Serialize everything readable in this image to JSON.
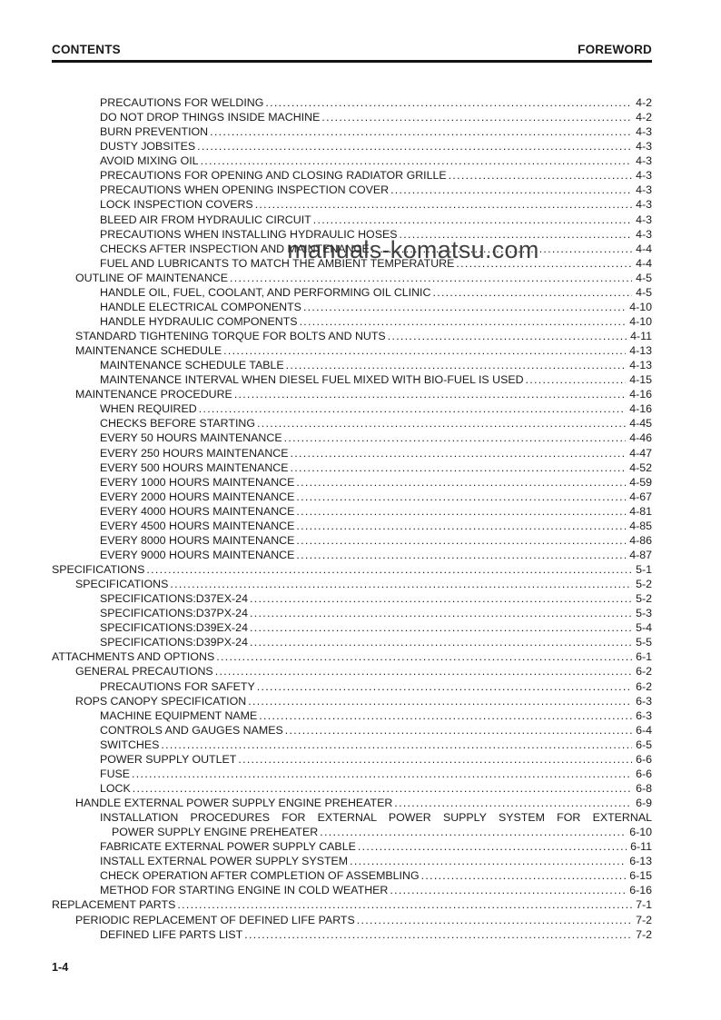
{
  "page": {
    "header": {
      "left": "CONTENTS",
      "right": "FOREWORD"
    },
    "watermark": "manuals-komatsu.com",
    "footer": {
      "page_number": "1-4"
    }
  },
  "toc": {
    "entries": [
      {
        "label": "PRECAUTIONS FOR WELDING",
        "page": "4-2",
        "level": 3
      },
      {
        "label": "DO NOT DROP THINGS INSIDE MACHINE",
        "page": "4-2",
        "level": 3
      },
      {
        "label": "BURN PREVENTION",
        "page": "4-3",
        "level": 3
      },
      {
        "label": "DUSTY JOBSITES",
        "page": "4-3",
        "level": 3
      },
      {
        "label": "AVOID MIXING OIL",
        "page": "4-3",
        "level": 3
      },
      {
        "label": "PRECAUTIONS FOR OPENING AND CLOSING RADIATOR GRILLE",
        "page": "4-3",
        "level": 3
      },
      {
        "label": "PRECAUTIONS WHEN OPENING INSPECTION COVER",
        "page": "4-3",
        "level": 3
      },
      {
        "label": "LOCK INSPECTION COVERS",
        "page": "4-3",
        "level": 3
      },
      {
        "label": "BLEED AIR FROM HYDRAULIC CIRCUIT",
        "page": "4-3",
        "level": 3
      },
      {
        "label": "PRECAUTIONS WHEN INSTALLING HYDRAULIC HOSES",
        "page": "4-3",
        "level": 3
      },
      {
        "label": "CHECKS AFTER INSPECTION AND MAINTENANCE",
        "page": "4-4",
        "level": 3
      },
      {
        "label": "FUEL AND LUBRICANTS TO MATCH THE AMBIENT TEMPERATURE",
        "page": "4-4",
        "level": 3
      },
      {
        "label": "OUTLINE OF MAINTENANCE",
        "page": "4-5",
        "level": 2
      },
      {
        "label": "HANDLE OIL, FUEL, COOLANT, AND PERFORMING OIL CLINIC",
        "page": "4-5",
        "level": 3
      },
      {
        "label": "HANDLE ELECTRICAL COMPONENTS",
        "page": "4-10",
        "level": 3
      },
      {
        "label": "HANDLE HYDRAULIC COMPONENTS",
        "page": "4-10",
        "level": 3
      },
      {
        "label": "STANDARD TIGHTENING TORQUE FOR BOLTS AND NUTS",
        "page": "4-11",
        "level": 2
      },
      {
        "label": "MAINTENANCE SCHEDULE",
        "page": "4-13",
        "level": 2
      },
      {
        "label": "MAINTENANCE SCHEDULE TABLE",
        "page": "4-13",
        "level": 3
      },
      {
        "label": "MAINTENANCE INTERVAL WHEN DIESEL FUEL MIXED WITH BIO-FUEL IS USED",
        "page": "4-15",
        "level": 3
      },
      {
        "label": "MAINTENANCE PROCEDURE",
        "page": "4-16",
        "level": 2
      },
      {
        "label": "WHEN REQUIRED",
        "page": "4-16",
        "level": 3
      },
      {
        "label": "CHECKS BEFORE STARTING",
        "page": "4-45",
        "level": 3
      },
      {
        "label": "EVERY 50 HOURS MAINTENANCE",
        "page": "4-46",
        "level": 3
      },
      {
        "label": "EVERY 250 HOURS MAINTENANCE",
        "page": "4-47",
        "level": 3
      },
      {
        "label": "EVERY 500 HOURS MAINTENANCE",
        "page": "4-52",
        "level": 3
      },
      {
        "label": "EVERY 1000 HOURS MAINTENANCE",
        "page": "4-59",
        "level": 3
      },
      {
        "label": "EVERY 2000 HOURS MAINTENANCE",
        "page": "4-67",
        "level": 3
      },
      {
        "label": "EVERY 4000 HOURS MAINTENANCE",
        "page": "4-81",
        "level": 3
      },
      {
        "label": "EVERY 4500 HOURS MAINTENANCE",
        "page": "4-85",
        "level": 3
      },
      {
        "label": "EVERY 8000 HOURS MAINTENANCE",
        "page": "4-86",
        "level": 3
      },
      {
        "label": "EVERY 9000 HOURS MAINTENANCE",
        "page": "4-87",
        "level": 3
      },
      {
        "label": "SPECIFICATIONS",
        "page": "5-1",
        "level": 1
      },
      {
        "label": "SPECIFICATIONS",
        "page": "5-2",
        "level": 2
      },
      {
        "label": "SPECIFICATIONS:D37EX-24",
        "page": "5-2",
        "level": 3
      },
      {
        "label": "SPECIFICATIONS:D37PX-24",
        "page": "5-3",
        "level": 3
      },
      {
        "label": "SPECIFICATIONS:D39EX-24",
        "page": "5-4",
        "level": 3
      },
      {
        "label": "SPECIFICATIONS:D39PX-24",
        "page": "5-5",
        "level": 3
      },
      {
        "label": "ATTACHMENTS AND OPTIONS",
        "page": "6-1",
        "level": 1
      },
      {
        "label": "GENERAL PRECAUTIONS",
        "page": "6-2",
        "level": 2
      },
      {
        "label": "PRECAUTIONS FOR SAFETY",
        "page": "6-2",
        "level": 3
      },
      {
        "label": "ROPS CANOPY SPECIFICATION",
        "page": "6-3",
        "level": 2
      },
      {
        "label": "MACHINE EQUIPMENT NAME",
        "page": "6-3",
        "level": 3
      },
      {
        "label": "CONTROLS AND GAUGES NAMES",
        "page": "6-4",
        "level": 3
      },
      {
        "label": "SWITCHES",
        "page": "6-5",
        "level": 3
      },
      {
        "label": "POWER SUPPLY OUTLET",
        "page": "6-6",
        "level": 3
      },
      {
        "label": "FUSE",
        "page": "6-6",
        "level": 3
      },
      {
        "label": "LOCK",
        "page": "6-8",
        "level": 3
      },
      {
        "label": "HANDLE EXTERNAL POWER SUPPLY ENGINE PREHEATER",
        "page": "6-9",
        "level": 2
      },
      {
        "label": "INSTALLATION PROCEDURES FOR EXTERNAL POWER SUPPLY SYSTEM FOR EXTERNAL",
        "label2": "POWER SUPPLY ENGINE PREHEATER",
        "page": "6-10",
        "level": 3
      },
      {
        "label": "FABRICATE EXTERNAL POWER SUPPLY CABLE",
        "page": "6-11",
        "level": 3
      },
      {
        "label": "INSTALL EXTERNAL POWER SUPPLY SYSTEM",
        "page": "6-13",
        "level": 3
      },
      {
        "label": "CHECK OPERATION AFTER COMPLETION OF ASSEMBLING",
        "page": "6-15",
        "level": 3
      },
      {
        "label": "METHOD FOR STARTING ENGINE IN COLD WEATHER",
        "page": "6-16",
        "level": 3
      },
      {
        "label": "REPLACEMENT PARTS",
        "page": "7-1",
        "level": 1
      },
      {
        "label": "PERIODIC REPLACEMENT OF DEFINED LIFE PARTS",
        "page": "7-2",
        "level": 2
      },
      {
        "label": "DEFINED LIFE PARTS LIST",
        "page": "7-2",
        "level": 3
      }
    ]
  }
}
